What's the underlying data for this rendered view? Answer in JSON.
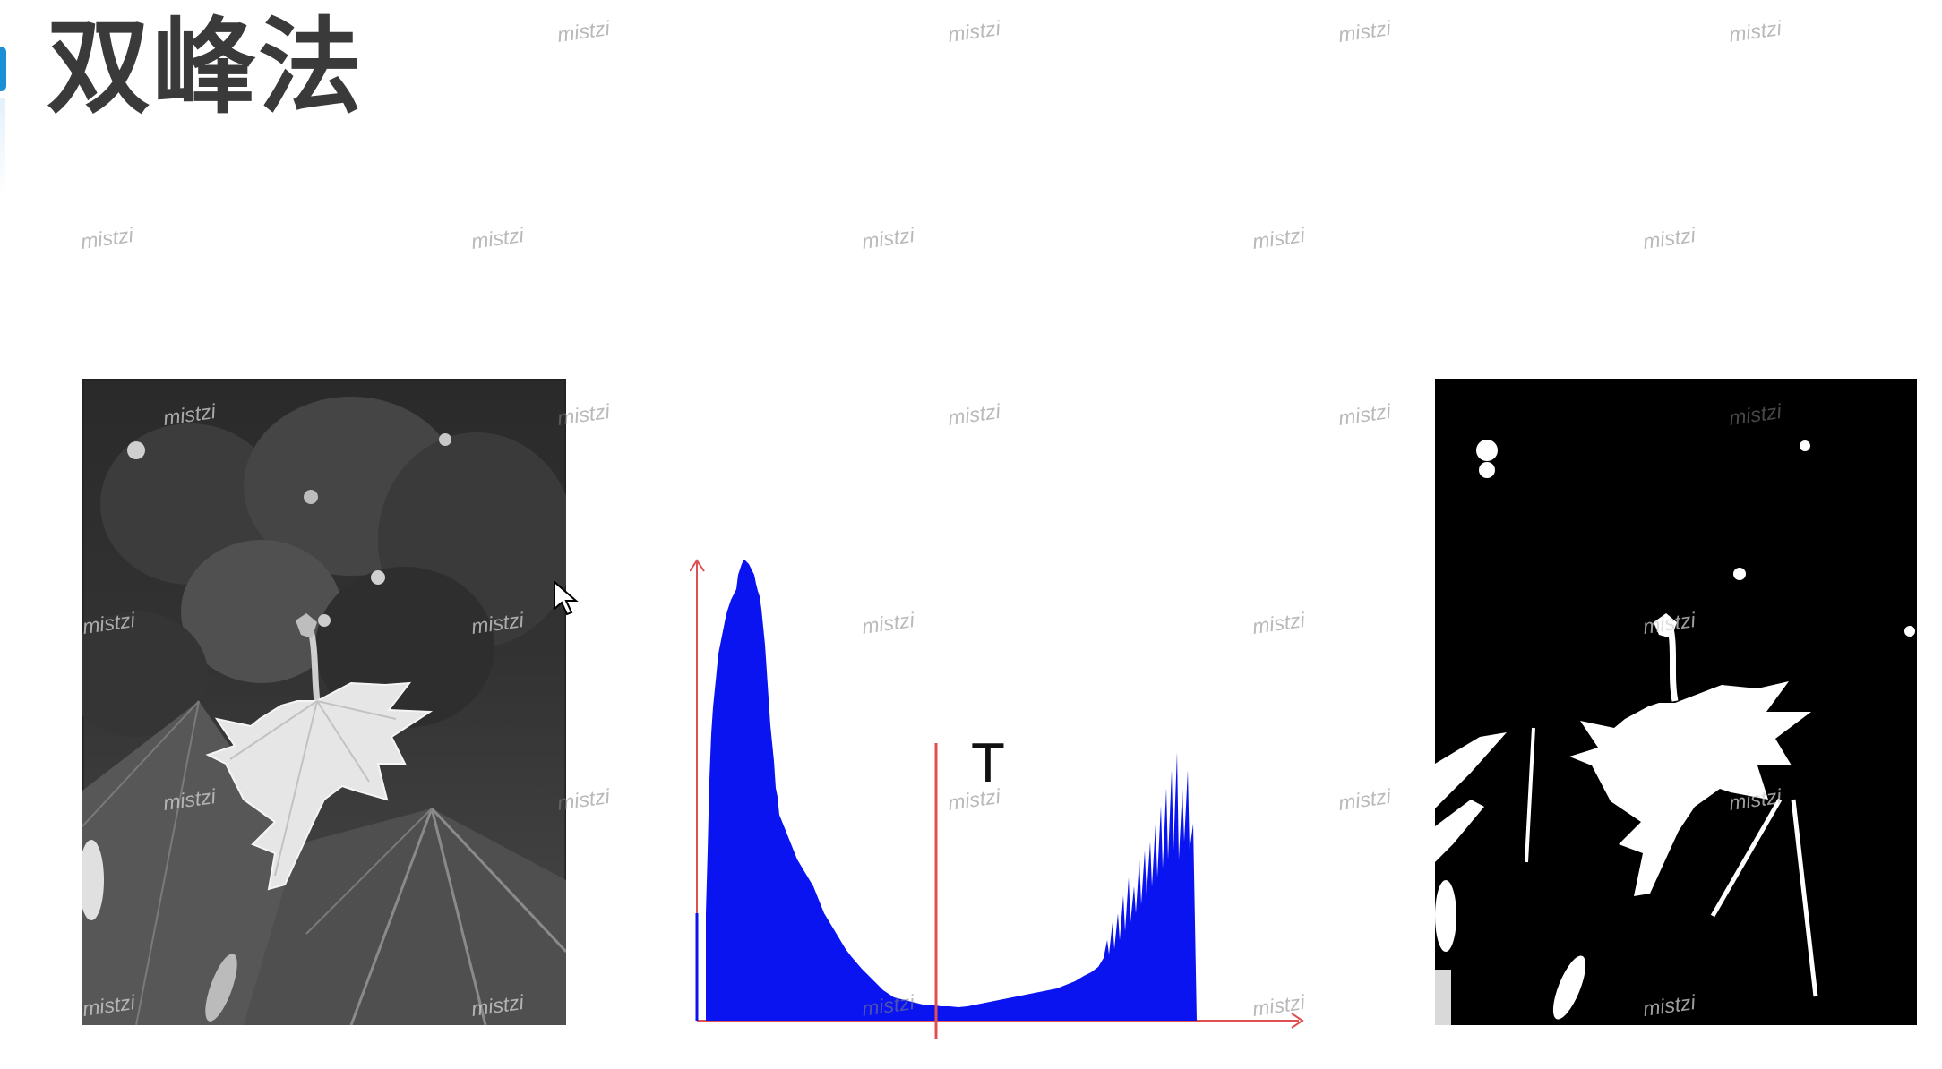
{
  "slide": {
    "title": "双峰法"
  },
  "histogram": {
    "threshold_label": "T"
  },
  "watermarks": [
    {
      "text": "mistzi",
      "tone": "dark"
    },
    {
      "text": "mistzi",
      "tone": "dark"
    },
    {
      "text": "mistzi",
      "tone": "dark"
    },
    {
      "text": "mistzi",
      "tone": "dark"
    },
    {
      "text": "mistzi",
      "tone": "dark"
    },
    {
      "text": "mistzi",
      "tone": "dark"
    },
    {
      "text": "mistzi",
      "tone": "dark"
    },
    {
      "text": "mistzi",
      "tone": "dark"
    },
    {
      "text": "mistzi",
      "tone": "dark"
    },
    {
      "text": "mistzi",
      "tone": "dark"
    },
    {
      "text": "mistzi",
      "tone": "light"
    },
    {
      "text": "mistzi",
      "tone": "dark"
    },
    {
      "text": "mistzi",
      "tone": "dark"
    },
    {
      "text": "mistzi",
      "tone": "dark"
    },
    {
      "text": "mistzi",
      "tone": "light"
    },
    {
      "text": "mistzi",
      "tone": "light"
    },
    {
      "text": "mistzi",
      "tone": "light"
    },
    {
      "text": "mistzi",
      "tone": "dark"
    },
    {
      "text": "mistzi",
      "tone": "dark"
    },
    {
      "text": "mistzi",
      "tone": "dark"
    },
    {
      "text": "mistzi",
      "tone": "light"
    },
    {
      "text": "mistzi",
      "tone": "light"
    },
    {
      "text": "mistzi",
      "tone": "dark"
    },
    {
      "text": "mistzi",
      "tone": "dark"
    },
    {
      "text": "mistzi",
      "tone": "dark"
    },
    {
      "text": "mistzi",
      "tone": "light"
    },
    {
      "text": "mistzi",
      "tone": "light"
    },
    {
      "text": "mistzi",
      "tone": "dark"
    },
    {
      "text": "mistzi",
      "tone": "dark"
    },
    {
      "text": "mistzi",
      "tone": "light"
    }
  ],
  "colors": {
    "histogram_fill": "#0a14f0",
    "axis": "#e05050",
    "title": "#3a3a3a",
    "accent": "#1a8fd6"
  },
  "icons": [
    "mouse-cursor-icon"
  ]
}
